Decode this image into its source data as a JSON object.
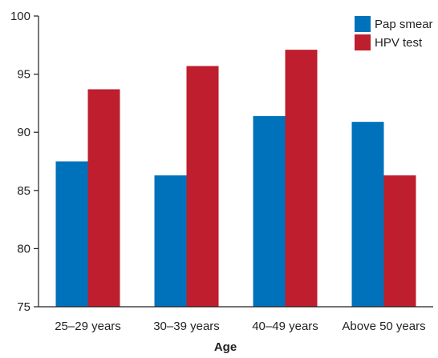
{
  "chart_data": {
    "type": "bar",
    "title": "",
    "xlabel": "Age",
    "ylabel": "",
    "categories": [
      "25–29 years",
      "30–39 years",
      "40–49 years",
      "Above 50 years"
    ],
    "series": [
      {
        "name": "Pap smear",
        "color": "#0072bc",
        "values": [
          87.5,
          86.3,
          91.4,
          90.9
        ]
      },
      {
        "name": "HPV test",
        "color": "#be1e2d",
        "values": [
          93.7,
          95.7,
          97.1,
          86.3
        ]
      }
    ],
    "ylim": [
      75,
      100
    ],
    "yticks": [
      "75",
      "80",
      "85",
      "90",
      "95",
      "100"
    ],
    "grid": false,
    "legend": "top-right"
  }
}
